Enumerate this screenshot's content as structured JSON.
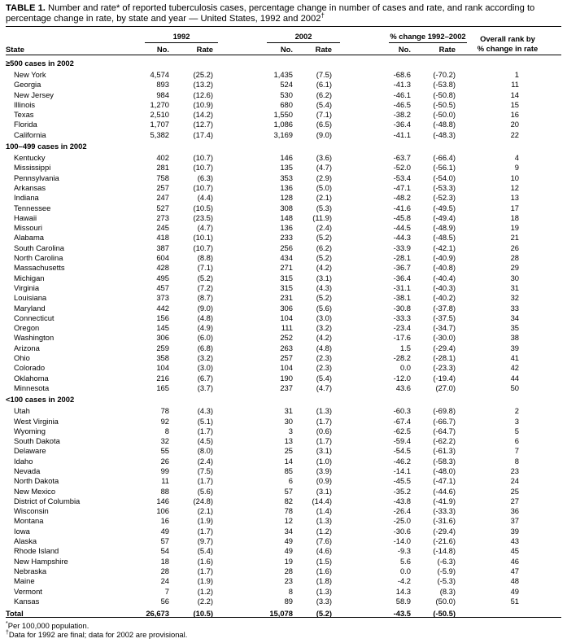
{
  "title": {
    "label": "TABLE 1.",
    "text": "Number and rate* of reported tuberculosis cases, percentage change in number of cases and rate, and rank according to percentage change in rate, by state and year — United States, 1992 and 2002",
    "mark": "†"
  },
  "headers": {
    "year1": "1992",
    "year2": "2002",
    "change": "% change 1992–2002",
    "rank_line1": "Overall rank by",
    "rank_line2": "% change in rate",
    "state": "State",
    "no": "No.",
    "rate": "Rate"
  },
  "groups": [
    {
      "label": "≥500 cases in 2002",
      "rows": [
        [
          "New York",
          "4,574",
          "(25.2)",
          "1,435",
          "(7.5)",
          "-68.6",
          "(-70.2)",
          "1"
        ],
        [
          "Georgia",
          "893",
          "(13.2)",
          "524",
          "(6.1)",
          "-41.3",
          "(-53.8)",
          "11"
        ],
        [
          "New Jersey",
          "984",
          "(12.6)",
          "530",
          "(6.2)",
          "-46.1",
          "(-50.8)",
          "14"
        ],
        [
          "Illinois",
          "1,270",
          "(10.9)",
          "680",
          "(5.4)",
          "-46.5",
          "(-50.5)",
          "15"
        ],
        [
          "Texas",
          "2,510",
          "(14.2)",
          "1,550",
          "(7.1)",
          "-38.2",
          "(-50.0)",
          "16"
        ],
        [
          "Florida",
          "1,707",
          "(12.7)",
          "1,086",
          "(6.5)",
          "-36.4",
          "(-48.8)",
          "20"
        ],
        [
          "California",
          "5,382",
          "(17.4)",
          "3,169",
          "(9.0)",
          "-41.1",
          "(-48.3)",
          "22"
        ]
      ]
    },
    {
      "label": "100–499 cases in 2002",
      "rows": [
        [
          "Kentucky",
          "402",
          "(10.7)",
          "146",
          "(3.6)",
          "-63.7",
          "(-66.4)",
          "4"
        ],
        [
          "Mississippi",
          "281",
          "(10.7)",
          "135",
          "(4.7)",
          "-52.0",
          "(-56.1)",
          "9"
        ],
        [
          "Pennsylvania",
          "758",
          "(6.3)",
          "353",
          "(2.9)",
          "-53.4",
          "(-54.0)",
          "10"
        ],
        [
          "Arkansas",
          "257",
          "(10.7)",
          "136",
          "(5.0)",
          "-47.1",
          "(-53.3)",
          "12"
        ],
        [
          "Indiana",
          "247",
          "(4.4)",
          "128",
          "(2.1)",
          "-48.2",
          "(-52.3)",
          "13"
        ],
        [
          "Tennessee",
          "527",
          "(10.5)",
          "308",
          "(5.3)",
          "-41.6",
          "(-49.5)",
          "17"
        ],
        [
          "Hawaii",
          "273",
          "(23.5)",
          "148",
          "(11.9)",
          "-45.8",
          "(-49.4)",
          "18"
        ],
        [
          "Missouri",
          "245",
          "(4.7)",
          "136",
          "(2.4)",
          "-44.5",
          "(-48.9)",
          "19"
        ],
        [
          "Alabama",
          "418",
          "(10.1)",
          "233",
          "(5.2)",
          "-44.3",
          "(-48.5)",
          "21"
        ],
        [
          "South Carolina",
          "387",
          "(10.7)",
          "256",
          "(6.2)",
          "-33.9",
          "(-42.1)",
          "26"
        ],
        [
          "North Carolina",
          "604",
          "(8.8)",
          "434",
          "(5.2)",
          "-28.1",
          "(-40.9)",
          "28"
        ],
        [
          "Massachusetts",
          "428",
          "(7.1)",
          "271",
          "(4.2)",
          "-36.7",
          "(-40.8)",
          "29"
        ],
        [
          "Michigan",
          "495",
          "(5.2)",
          "315",
          "(3.1)",
          "-36.4",
          "(-40.4)",
          "30"
        ],
        [
          "Virginia",
          "457",
          "(7.2)",
          "315",
          "(4.3)",
          "-31.1",
          "(-40.3)",
          "31"
        ],
        [
          "Louisiana",
          "373",
          "(8.7)",
          "231",
          "(5.2)",
          "-38.1",
          "(-40.2)",
          "32"
        ],
        [
          "Maryland",
          "442",
          "(9.0)",
          "306",
          "(5.6)",
          "-30.8",
          "(-37.8)",
          "33"
        ],
        [
          "Connecticut",
          "156",
          "(4.8)",
          "104",
          "(3.0)",
          "-33.3",
          "(-37.5)",
          "34"
        ],
        [
          "Oregon",
          "145",
          "(4.9)",
          "111",
          "(3.2)",
          "-23.4",
          "(-34.7)",
          "35"
        ],
        [
          "Washington",
          "306",
          "(6.0)",
          "252",
          "(4.2)",
          "-17.6",
          "(-30.0)",
          "38"
        ],
        [
          "Arizona",
          "259",
          "(6.8)",
          "263",
          "(4.8)",
          "1.5",
          "(-29.4)",
          "39"
        ],
        [
          "Ohio",
          "358",
          "(3.2)",
          "257",
          "(2.3)",
          "-28.2",
          "(-28.1)",
          "41"
        ],
        [
          "Colorado",
          "104",
          "(3.0)",
          "104",
          "(2.3)",
          "0.0",
          "(-23.3)",
          "42"
        ],
        [
          "Oklahoma",
          "216",
          "(6.7)",
          "190",
          "(5.4)",
          "-12.0",
          "(-19.4)",
          "44"
        ],
        [
          "Minnesota",
          "165",
          "(3.7)",
          "237",
          "(4.7)",
          "43.6",
          "(27.0)",
          "50"
        ]
      ]
    },
    {
      "label": "<100 cases in 2002",
      "rows": [
        [
          "Utah",
          "78",
          "(4.3)",
          "31",
          "(1.3)",
          "-60.3",
          "(-69.8)",
          "2"
        ],
        [
          "West Virginia",
          "92",
          "(5.1)",
          "30",
          "(1.7)",
          "-67.4",
          "(-66.7)",
          "3"
        ],
        [
          "Wyoming",
          "8",
          "(1.7)",
          "3",
          "(0.6)",
          "-62.5",
          "(-64.7)",
          "5"
        ],
        [
          "South Dakota",
          "32",
          "(4.5)",
          "13",
          "(1.7)",
          "-59.4",
          "(-62.2)",
          "6"
        ],
        [
          "Delaware",
          "55",
          "(8.0)",
          "25",
          "(3.1)",
          "-54.5",
          "(-61.3)",
          "7"
        ],
        [
          "Idaho",
          "26",
          "(2.4)",
          "14",
          "(1.0)",
          "-46.2",
          "(-58.3)",
          "8"
        ],
        [
          "Nevada",
          "99",
          "(7.5)",
          "85",
          "(3.9)",
          "-14.1",
          "(-48.0)",
          "23"
        ],
        [
          "North Dakota",
          "11",
          "(1.7)",
          "6",
          "(0.9)",
          "-45.5",
          "(-47.1)",
          "24"
        ],
        [
          "New Mexico",
          "88",
          "(5.6)",
          "57",
          "(3.1)",
          "-35.2",
          "(-44.6)",
          "25"
        ],
        [
          "District of Columbia",
          "146",
          "(24.8)",
          "82",
          "(14.4)",
          "-43.8",
          "(-41.9)",
          "27"
        ],
        [
          "Wisconsin",
          "106",
          "(2.1)",
          "78",
          "(1.4)",
          "-26.4",
          "(-33.3)",
          "36"
        ],
        [
          "Montana",
          "16",
          "(1.9)",
          "12",
          "(1.3)",
          "-25.0",
          "(-31.6)",
          "37"
        ],
        [
          "Iowa",
          "49",
          "(1.7)",
          "34",
          "(1.2)",
          "-30.6",
          "(-29.4)",
          "39"
        ],
        [
          "Alaska",
          "57",
          "(9.7)",
          "49",
          "(7.6)",
          "-14.0",
          "(-21.6)",
          "43"
        ],
        [
          "Rhode Island",
          "54",
          "(5.4)",
          "49",
          "(4.6)",
          "-9.3",
          "(-14.8)",
          "45"
        ],
        [
          "New Hampshire",
          "18",
          "(1.6)",
          "19",
          "(1.5)",
          "5.6",
          "(-6.3)",
          "46"
        ],
        [
          "Nebraska",
          "28",
          "(1.7)",
          "28",
          "(1.6)",
          "0.0",
          "(-5.9)",
          "47"
        ],
        [
          "Maine",
          "24",
          "(1.9)",
          "23",
          "(1.8)",
          "-4.2",
          "(-5.3)",
          "48"
        ],
        [
          "Vermont",
          "7",
          "(1.2)",
          "8",
          "(1.3)",
          "14.3",
          "(8.3)",
          "49"
        ],
        [
          "Kansas",
          "56",
          "(2.2)",
          "89",
          "(3.3)",
          "58.9",
          "(50.0)",
          "51"
        ]
      ]
    }
  ],
  "total": [
    "Total",
    "26,673",
    "(10.5)",
    "15,078",
    "(5.2)",
    "-43.5",
    "(-50.5)",
    ""
  ],
  "footnotes": [
    {
      "mark": "*",
      "text": "Per 100,000 population."
    },
    {
      "mark": "†",
      "text": "Data for 1992 are final; data for 2002 are provisional."
    }
  ]
}
